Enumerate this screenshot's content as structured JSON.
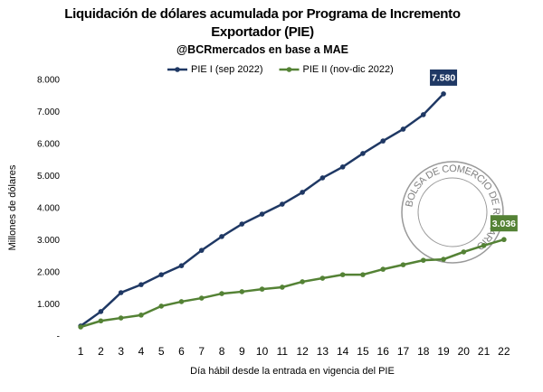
{
  "chart_data": {
    "type": "line",
    "title": "Liquidación de dólares acumulada por Programa de Incremento Exportador (PIE)",
    "subtitle": "@BCRmercados en base a MAE",
    "y_label": "Millones de dólares",
    "x_label": "Día hábil desde la entrada en vigencia del PIE",
    "watermark": "BOLSA DE COMERCIO DE ROSARIO",
    "x": [
      1,
      2,
      3,
      4,
      5,
      6,
      7,
      8,
      9,
      10,
      11,
      12,
      13,
      14,
      15,
      16,
      17,
      18,
      19,
      20,
      21,
      22
    ],
    "xlim": [
      0.5,
      22.5
    ],
    "xticks": [
      1,
      2,
      3,
      4,
      5,
      6,
      7,
      8,
      9,
      10,
      11,
      12,
      13,
      14,
      15,
      16,
      17,
      18,
      19,
      20,
      21,
      22
    ],
    "ylim": [
      0,
      8000
    ],
    "yticks": [
      {
        "value": 0,
        "label": "-"
      },
      {
        "value": 1000,
        "label": "1.000"
      },
      {
        "value": 2000,
        "label": "2.000"
      },
      {
        "value": 3000,
        "label": "3.000"
      },
      {
        "value": 4000,
        "label": "4.000"
      },
      {
        "value": 5000,
        "label": "5.000"
      },
      {
        "value": 6000,
        "label": "6.000"
      },
      {
        "value": 7000,
        "label": "7.000"
      },
      {
        "value": 8000,
        "label": "8.000"
      }
    ],
    "grid": false,
    "legend": "top",
    "series": [
      {
        "name": "PIE I (sep 2022)",
        "color": "#1f3864",
        "values": [
          340,
          790,
          1380,
          1630,
          1940,
          2220,
          2700,
          3130,
          3520,
          3830,
          4140,
          4510,
          4960,
          5300,
          5720,
          6110,
          6480,
          6930,
          7580,
          null,
          null,
          null
        ],
        "value_labels": [
          null,
          null,
          null,
          null,
          null,
          null,
          null,
          null,
          null,
          null,
          null,
          null,
          null,
          null,
          null,
          null,
          null,
          null,
          "7.580",
          null,
          null,
          null
        ]
      },
      {
        "name": "PIE II (nov-dic 2022)",
        "color": "#548235",
        "values": [
          310,
          500,
          590,
          680,
          960,
          1100,
          1210,
          1350,
          1410,
          1490,
          1550,
          1720,
          1830,
          1940,
          1940,
          2110,
          2250,
          2390,
          2420,
          2650,
          2850,
          3036
        ],
        "value_labels": [
          null,
          null,
          null,
          null,
          null,
          null,
          null,
          null,
          null,
          null,
          null,
          null,
          null,
          null,
          null,
          null,
          null,
          null,
          null,
          null,
          null,
          "3.036"
        ]
      }
    ]
  }
}
